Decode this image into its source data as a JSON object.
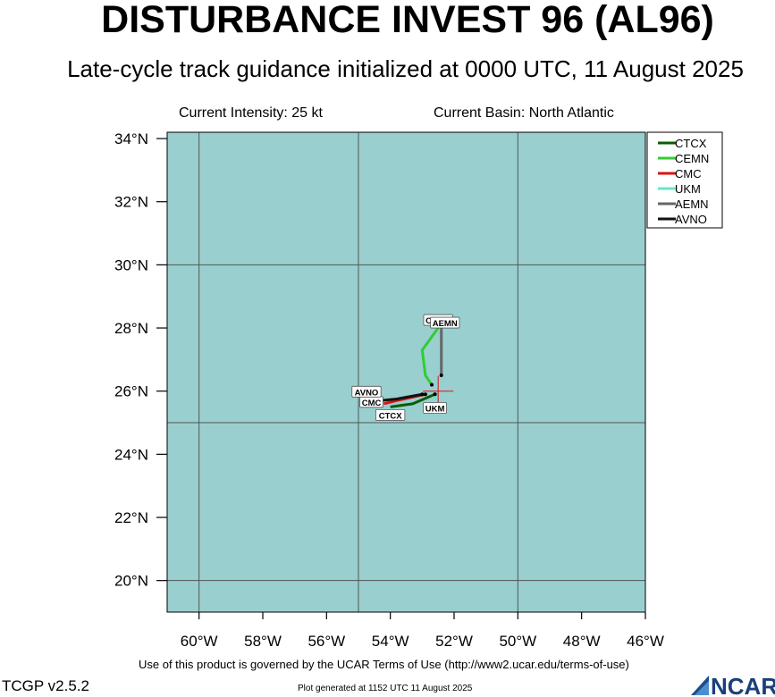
{
  "title": "DISTURBANCE INVEST 96 (AL96)",
  "subtitle": "Late-cycle track guidance initialized at 0000 UTC, 11 August 2025",
  "current_intensity": "Current Intensity: 25 kt",
  "current_basin": "Current Basin: North Atlantic",
  "terms": "Use of this product is governed by the UCAR Terms of Use (http://www2.ucar.edu/terms-of-use)",
  "version": "TCGP v2.5.2",
  "generated": "Plot generated at 1152 UTC   11 August 2025",
  "logo_text": "NCAR",
  "colors": {
    "ocean": "#99cfcf",
    "grid": "#555555",
    "CTCX": "#0a5c0a",
    "CEMN": "#33cc33",
    "CMC": "#dd1111",
    "UKM": "#66e8c4",
    "AEMN": "#666666",
    "AVNO": "#111111",
    "current_position": "#dd1111"
  },
  "chart_data": {
    "type": "map",
    "lon_range": [
      -61,
      -46
    ],
    "lat_range": [
      19,
      34.2
    ],
    "x_ticks": [
      {
        "value": -60,
        "label": "60°W"
      },
      {
        "value": -58,
        "label": "58°W"
      },
      {
        "value": -56,
        "label": "56°W"
      },
      {
        "value": -54,
        "label": "54°W"
      },
      {
        "value": -52,
        "label": "52°W"
      },
      {
        "value": -50,
        "label": "50°W"
      },
      {
        "value": -48,
        "label": "48°W"
      },
      {
        "value": -46,
        "label": "46°W"
      }
    ],
    "y_ticks": [
      {
        "value": 20,
        "label": "20°N"
      },
      {
        "value": 22,
        "label": "22°N"
      },
      {
        "value": 24,
        "label": "24°N"
      },
      {
        "value": 26,
        "label": "26°N"
      },
      {
        "value": 28,
        "label": "28°N"
      },
      {
        "value": 30,
        "label": "30°N"
      },
      {
        "value": 32,
        "label": "32°N"
      },
      {
        "value": 34,
        "label": "34°N"
      }
    ],
    "grid_lons": [
      -60,
      -55,
      -50,
      -45
    ],
    "grid_lats": [
      20,
      25,
      30
    ],
    "current_position": {
      "lon": -52.5,
      "lat": 26.0
    },
    "legend": [
      "CTCX",
      "CEMN",
      "CMC",
      "UKM",
      "AEMN",
      "AVNO"
    ],
    "legend_placement": "top-right",
    "tracks": [
      {
        "model": "CTCX",
        "points": [
          [
            -52.6,
            25.9
          ],
          [
            -53.3,
            25.6
          ],
          [
            -54.0,
            25.5
          ]
        ],
        "end_label": "CTCX"
      },
      {
        "model": "CEMN",
        "points": [
          [
            -52.7,
            26.2
          ],
          [
            -52.9,
            26.5
          ],
          [
            -53.0,
            27.3
          ],
          [
            -52.5,
            28.0
          ]
        ],
        "end_label": "CEMN"
      },
      {
        "model": "CMC",
        "points": [
          [
            -52.9,
            25.9
          ],
          [
            -53.8,
            25.7
          ],
          [
            -54.2,
            25.6
          ]
        ],
        "end_label": "CMC"
      },
      {
        "model": "UKM",
        "points": [
          [
            -52.6,
            25.9
          ],
          [
            -52.6,
            25.75
          ]
        ],
        "end_label": "UKM"
      },
      {
        "model": "AEMN",
        "points": [
          [
            -52.4,
            26.5
          ],
          [
            -52.4,
            27.2
          ],
          [
            -52.4,
            28.0
          ]
        ],
        "end_label": "AEMN"
      },
      {
        "model": "AVNO",
        "points": [
          [
            -53.0,
            25.9
          ],
          [
            -53.8,
            25.75
          ],
          [
            -54.3,
            25.7
          ]
        ],
        "end_label": "AVNO"
      }
    ]
  }
}
